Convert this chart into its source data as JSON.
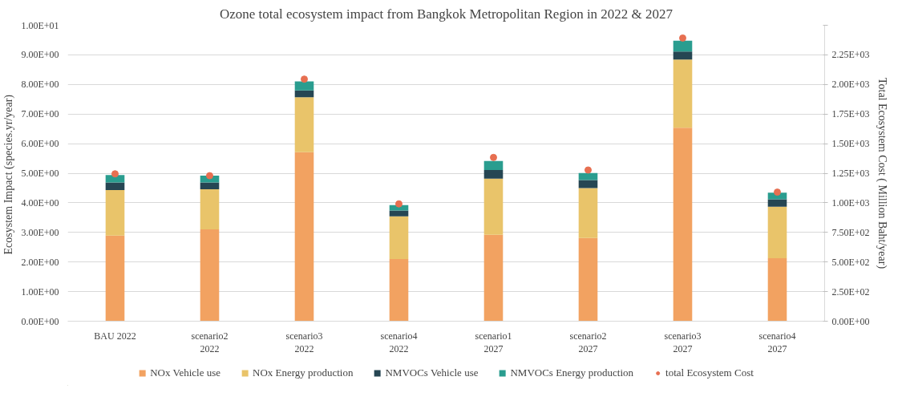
{
  "chart_data": {
    "type": "bar",
    "title": "Ozone total ecosystem impact from Bangkok Metropolitan Region in 2022 & 2027",
    "ylabel": "Ecosystem Impact  (species.yr/year)",
    "y2label": "Total Ecosystem Cost ( Million Baht/year)",
    "categories": [
      "BAU 2022",
      "scenario2 2022",
      "scenario3 2022",
      "scenario4 2022",
      "scenario1 2027",
      "scenario2 2027",
      "scenario3 2027",
      "scenario4 2027"
    ],
    "stacked": true,
    "series": [
      {
        "name": "NOx Vehicle use",
        "color": "#f2a261",
        "values": [
          2.89,
          3.1,
          5.71,
          2.1,
          2.92,
          2.81,
          6.54,
          2.13
        ]
      },
      {
        "name": "NOx Energy production",
        "color": "#e9c46a",
        "values": [
          1.54,
          1.36,
          1.86,
          1.44,
          1.9,
          1.69,
          2.3,
          1.74
        ]
      },
      {
        "name": "NMVOCs Vehicle use",
        "color": "#264653",
        "values": [
          0.26,
          0.23,
          0.23,
          0.2,
          0.29,
          0.27,
          0.27,
          0.25
        ]
      },
      {
        "name": "NMVOCs Energy production",
        "color": "#2a9d8f",
        "values": [
          0.25,
          0.23,
          0.3,
          0.18,
          0.3,
          0.24,
          0.37,
          0.22
        ]
      },
      {
        "name": "total Ecosystem Cost",
        "color": "#e76f51",
        "type": "scatter",
        "axis": "y2",
        "marker": "circle",
        "values": [
          1245,
          1229,
          2045,
          991,
          1383,
          1277,
          2392,
          1090
        ]
      }
    ],
    "ylim": [
      0,
      10
    ],
    "yticks": [
      {
        "value": 0,
        "label": "0.00E+00"
      },
      {
        "value": 1,
        "label": "1.00E+00"
      },
      {
        "value": 2,
        "label": "2.00E+00"
      },
      {
        "value": 3,
        "label": "3.00E+00"
      },
      {
        "value": 4,
        "label": "4.00E+00"
      },
      {
        "value": 5,
        "label": "5.00E+00"
      },
      {
        "value": 6,
        "label": "6.00E+00"
      },
      {
        "value": 7,
        "label": "7.00E+00"
      },
      {
        "value": 8,
        "label": "8.00E+00"
      },
      {
        "value": 9,
        "label": "9.00E+00"
      },
      {
        "value": 10,
        "label": "1.00E+01"
      }
    ],
    "y2lim": [
      0,
      2500
    ],
    "y2ticks": [
      {
        "value": 0,
        "label": "0.00E+00"
      },
      {
        "value": 250,
        "label": "2.50E+02"
      },
      {
        "value": 500,
        "label": "5.00E+02"
      },
      {
        "value": 750,
        "label": "7.50E+02"
      },
      {
        "value": 1000,
        "label": "1.00E+03"
      },
      {
        "value": 1250,
        "label": "1.25E+03"
      },
      {
        "value": 1500,
        "label": "1.50E+03"
      },
      {
        "value": 1750,
        "label": "1.75E+03"
      },
      {
        "value": 2000,
        "label": "2.00E+03"
      },
      {
        "value": 2250,
        "label": "2.25E+03"
      },
      {
        "value": 2500,
        "label": null
      }
    ],
    "grid": "y",
    "legend": "bottom"
  }
}
